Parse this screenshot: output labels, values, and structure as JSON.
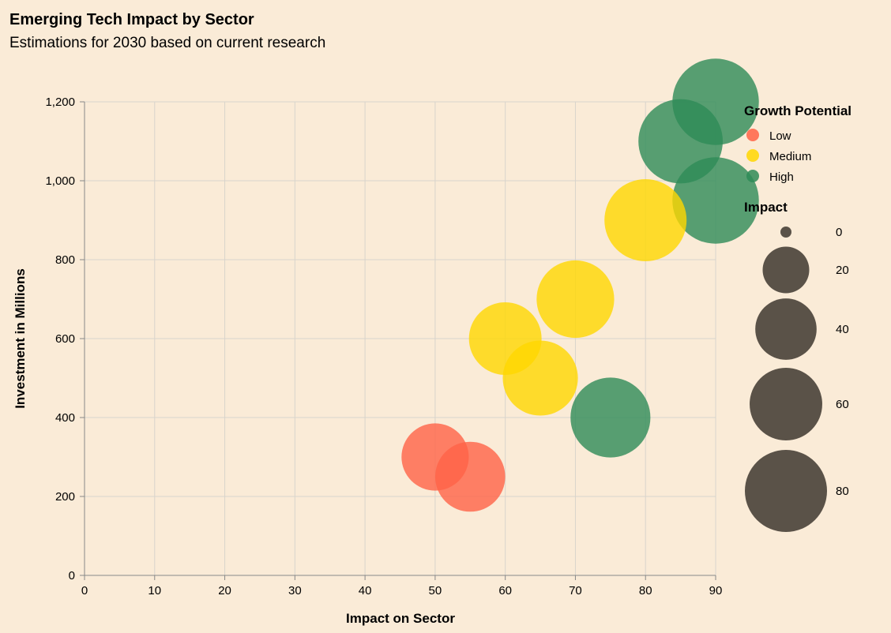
{
  "chart_data": {
    "type": "scatter",
    "subtype": "bubble",
    "title": "Emerging Tech Impact by Sector",
    "subtitle": "Estimations for 2030 based on current research",
    "xlabel": "Impact on Sector",
    "ylabel": "Investment in Millions",
    "xlim": [
      0,
      90
    ],
    "ylim": [
      0,
      1200
    ],
    "x_ticks": [
      0,
      10,
      20,
      30,
      40,
      50,
      60,
      70,
      80,
      90
    ],
    "y_ticks": [
      0,
      200,
      400,
      600,
      800,
      1000,
      1200
    ],
    "y_tick_labels": [
      "0",
      "200",
      "400",
      "600",
      "800",
      "1,000",
      "1,200"
    ],
    "grid": true,
    "legend_position": "right",
    "color_legend": {
      "title": "Growth Potential",
      "entries": [
        {
          "label": "Low",
          "color": "#ff6347"
        },
        {
          "label": "Medium",
          "color": "#ffd700"
        },
        {
          "label": "High",
          "color": "#2e8b57"
        }
      ]
    },
    "size_legend": {
      "title": "Impact",
      "values": [
        0,
        20,
        40,
        60,
        80
      ],
      "color": "#5a5248"
    },
    "points": [
      {
        "x": 90,
        "y": 1200,
        "impact": 90,
        "growth": "High"
      },
      {
        "x": 85,
        "y": 1100,
        "impact": 85,
        "growth": "High"
      },
      {
        "x": 90,
        "y": 950,
        "impact": 90,
        "growth": "High"
      },
      {
        "x": 80,
        "y": 900,
        "impact": 80,
        "growth": "Medium"
      },
      {
        "x": 70,
        "y": 700,
        "impact": 70,
        "growth": "Medium"
      },
      {
        "x": 60,
        "y": 600,
        "impact": 60,
        "growth": "Medium"
      },
      {
        "x": 65,
        "y": 500,
        "impact": 65,
        "growth": "Medium"
      },
      {
        "x": 75,
        "y": 400,
        "impact": 75,
        "growth": "High"
      },
      {
        "x": 50,
        "y": 300,
        "impact": 50,
        "growth": "Low"
      },
      {
        "x": 55,
        "y": 250,
        "impact": 55,
        "growth": "Low"
      }
    ]
  }
}
